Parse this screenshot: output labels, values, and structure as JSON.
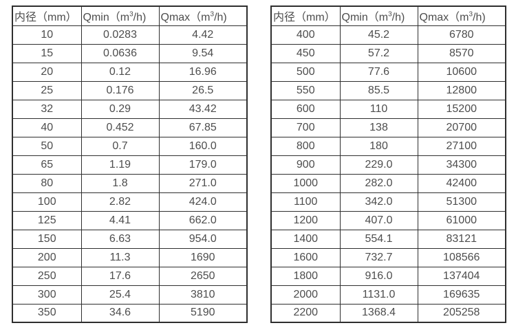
{
  "page": {
    "background": "#ffffff",
    "text_color": "#4d4d4d",
    "border_color": "#2e2e2e"
  },
  "tables": [
    {
      "name": "flow-table-small-diameters",
      "headers": [
        {
          "pre": "内径（mm）",
          "sup": "",
          "post": ""
        },
        {
          "pre": "Qmin（m",
          "sup": "3",
          "post": "/h)"
        },
        {
          "pre": "Qmax（m",
          "sup": "3",
          "post": "/h)"
        }
      ],
      "rows": [
        [
          "10",
          "0.0283",
          "4.42"
        ],
        [
          "15",
          "0.0636",
          "9.54"
        ],
        [
          "20",
          "0.12",
          "16.96"
        ],
        [
          "25",
          "0.176",
          "26.5"
        ],
        [
          "32",
          "0.29",
          "43.42"
        ],
        [
          "40",
          "0.452",
          "67.85"
        ],
        [
          "50",
          "0.7",
          "160.0"
        ],
        [
          "65",
          "1.19",
          "179.0"
        ],
        [
          "80",
          "1.8",
          "271.0"
        ],
        [
          "100",
          "2.82",
          "424.0"
        ],
        [
          "125",
          "4.41",
          "662.0"
        ],
        [
          "150",
          "6.63",
          "954.0"
        ],
        [
          "200",
          "11.3",
          "1690"
        ],
        [
          "250",
          "17.6",
          "2650"
        ],
        [
          "300",
          "25.4",
          "3810"
        ],
        [
          "350",
          "34.6",
          "5190"
        ]
      ]
    },
    {
      "name": "flow-table-large-diameters",
      "headers": [
        {
          "pre": "内径（mm）",
          "sup": "",
          "post": ""
        },
        {
          "pre": "Qmin（m",
          "sup": "3",
          "post": "/h)"
        },
        {
          "pre": "Qmax（m",
          "sup": "3",
          "post": "/h)"
        }
      ],
      "rows": [
        [
          "400",
          "45.2",
          "6780"
        ],
        [
          "450",
          "57.2",
          "8570"
        ],
        [
          "500",
          "77.6",
          "10600"
        ],
        [
          "550",
          "85.5",
          "12800"
        ],
        [
          "600",
          "110",
          "15200"
        ],
        [
          "700",
          "138",
          "20700"
        ],
        [
          "800",
          "180",
          "27100"
        ],
        [
          "900",
          "229.0",
          "34300"
        ],
        [
          "1000",
          "282.0",
          "42400"
        ],
        [
          "1100",
          "342.0",
          "51300"
        ],
        [
          "1200",
          "407.0",
          "61000"
        ],
        [
          "1400",
          "554.1",
          "83121"
        ],
        [
          "1600",
          "732.7",
          "108566"
        ],
        [
          "1800",
          "916.0",
          "137404"
        ],
        [
          "2000",
          "1131.0",
          "169635"
        ],
        [
          "2200",
          "1368.4",
          "205258"
        ]
      ]
    }
  ]
}
